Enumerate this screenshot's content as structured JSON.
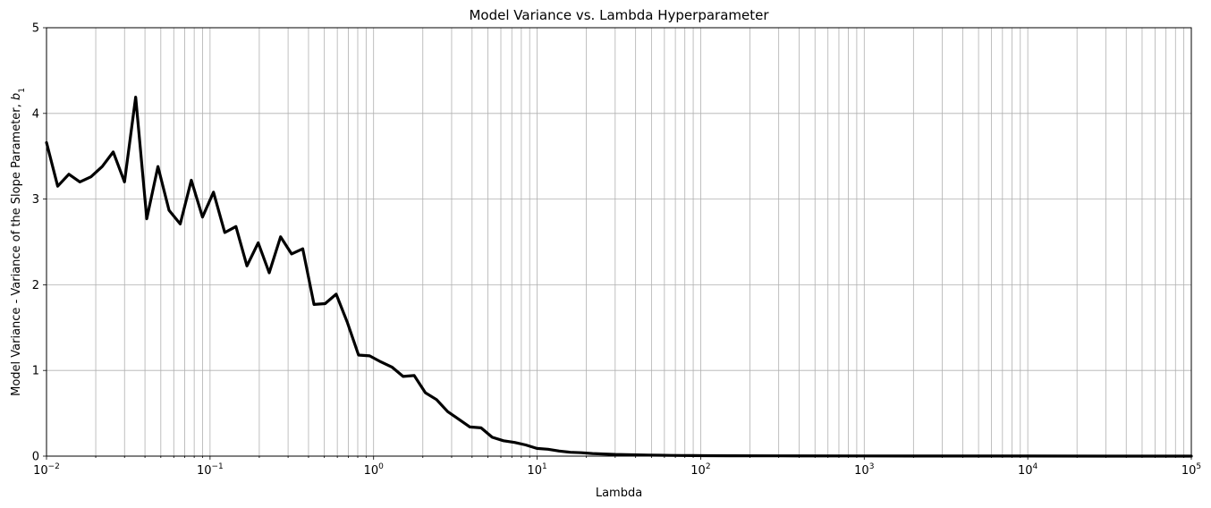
{
  "chart_data": {
    "type": "line",
    "title": "Model Variance vs. Lambda Hyperparameter",
    "xlabel": "Lambda",
    "ylabel": "Model Variance - Variance of the Slope Parameter, ",
    "ylabel_math": "b",
    "ylabel_sub": "1",
    "xscale": "log",
    "xlim": [
      0.01,
      100000
    ],
    "ylim": [
      0,
      5
    ],
    "grid": true,
    "x_ticks": [
      {
        "base": "10",
        "exp": "−2"
      },
      {
        "base": "10",
        "exp": "−1"
      },
      {
        "base": "10",
        "exp": "0"
      },
      {
        "base": "10",
        "exp": "1"
      },
      {
        "base": "10",
        "exp": "2"
      },
      {
        "base": "10",
        "exp": "3"
      },
      {
        "base": "10",
        "exp": "4"
      },
      {
        "base": "10",
        "exp": "5"
      }
    ],
    "y_ticks": [
      "0",
      "1",
      "2",
      "3",
      "4",
      "5"
    ],
    "line_color": "#000000",
    "series": [
      {
        "x": [
          0.01,
          0.0117,
          0.0137,
          0.016,
          0.0187,
          0.0219,
          0.0256,
          0.03,
          0.0351,
          0.041,
          0.048,
          0.0561,
          0.0657,
          0.0768,
          0.0899,
          0.105,
          0.123,
          0.144,
          0.168,
          0.197,
          0.23,
          0.27,
          0.315,
          0.369,
          0.432,
          0.505,
          0.591,
          0.691,
          0.809,
          0.946,
          1.107,
          1.295,
          1.515,
          1.772,
          2.073,
          2.425,
          2.837,
          3.32,
          3.88,
          4.54,
          5.31,
          6.22,
          7.28,
          8.51,
          9.96,
          11.65,
          13.63,
          15.95,
          18.66,
          21.8,
          25.5,
          29.9,
          35,
          40.9,
          47.8,
          56,
          65.5,
          76.6,
          89.6,
          104.8,
          150,
          300,
          1000,
          3000,
          10000,
          30000,
          100000
        ],
        "y": [
          3.66,
          3.15,
          3.29,
          3.2,
          3.26,
          3.38,
          3.55,
          3.2,
          4.19,
          2.77,
          3.38,
          2.87,
          2.71,
          3.22,
          2.79,
          3.08,
          2.61,
          2.68,
          2.22,
          2.49,
          2.14,
          2.56,
          2.36,
          2.42,
          1.77,
          1.78,
          1.89,
          1.56,
          1.18,
          1.17,
          1.1,
          1.04,
          0.93,
          0.94,
          0.74,
          0.66,
          0.52,
          0.43,
          0.34,
          0.33,
          0.22,
          0.18,
          0.16,
          0.13,
          0.09,
          0.08,
          0.06,
          0.045,
          0.04,
          0.03,
          0.025,
          0.02,
          0.018,
          0.015,
          0.012,
          0.01,
          0.008,
          0.007,
          0.006,
          0.005,
          0.004,
          0.003,
          0.002,
          0.001,
          0.001,
          0.0005,
          0.0003
        ]
      }
    ]
  }
}
